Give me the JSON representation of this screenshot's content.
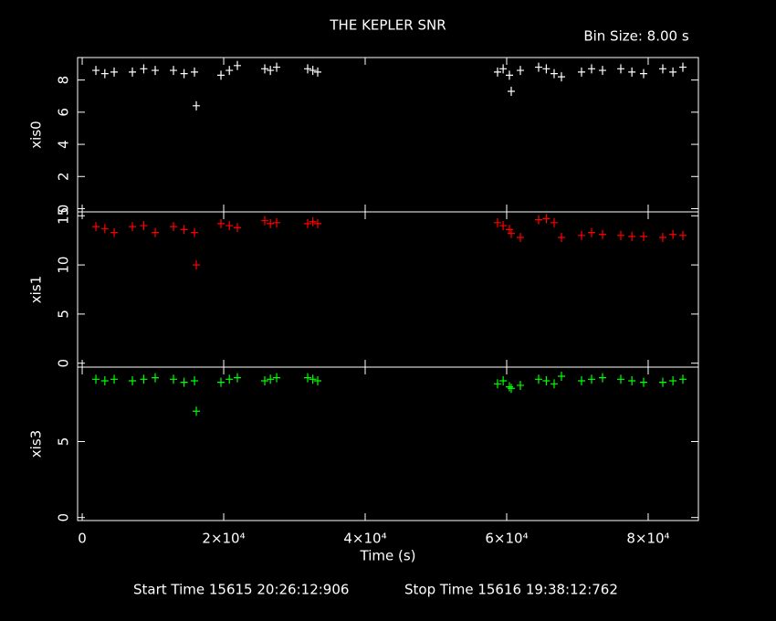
{
  "chart_data": [
    {
      "type": "scatter",
      "title": "THE KEPLER SNR",
      "subtitle": "Bin Size: 8.00 s",
      "ylabel": "xis0",
      "color": "#ffffff",
      "ylim": [
        -0.2,
        9.4
      ],
      "yticks": [
        0,
        2,
        4,
        6,
        8
      ],
      "x": [
        1935,
        3200,
        4516,
        7097,
        8700,
        10323,
        12903,
        14400,
        15871,
        16129,
        19613,
        20800,
        21935,
        25806,
        26600,
        27484,
        31871,
        32600,
        33290,
        58710,
        59500,
        60387,
        60645,
        61935,
        64516,
        65600,
        66710,
        67742,
        70581,
        72000,
        73548,
        76129,
        77700,
        79355,
        82065,
        83500,
        84903
      ],
      "y": [
        8.6,
        8.4,
        8.5,
        8.5,
        8.7,
        8.6,
        8.6,
        8.4,
        8.5,
        6.4,
        8.3,
        8.6,
        8.9,
        8.7,
        8.6,
        8.8,
        8.7,
        8.6,
        8.5,
        8.5,
        8.7,
        8.3,
        7.3,
        8.6,
        8.8,
        8.7,
        8.4,
        8.2,
        8.5,
        8.7,
        8.6,
        8.7,
        8.5,
        8.4,
        8.7,
        8.5,
        8.8
      ]
    },
    {
      "type": "scatter",
      "ylabel": "xis1",
      "color": "#ff0000",
      "ylim": [
        -0.4,
        15.4
      ],
      "yticks": [
        0,
        5,
        10,
        15
      ],
      "x": [
        1935,
        3200,
        4516,
        7097,
        8700,
        10323,
        12903,
        14400,
        15871,
        16129,
        19613,
        20800,
        21935,
        25806,
        26600,
        27484,
        31871,
        32600,
        33290,
        58710,
        59500,
        60387,
        60645,
        61935,
        64516,
        65600,
        66710,
        67742,
        70581,
        72000,
        73548,
        76129,
        77700,
        79355,
        82065,
        83500,
        84903
      ],
      "y": [
        13.9,
        13.7,
        13.3,
        13.9,
        14.0,
        13.3,
        13.9,
        13.6,
        13.3,
        10.0,
        14.2,
        14.0,
        13.8,
        14.5,
        14.2,
        14.3,
        14.2,
        14.4,
        14.2,
        14.3,
        14.0,
        13.6,
        13.2,
        12.8,
        14.6,
        14.7,
        14.3,
        12.8,
        13.0,
        13.3,
        13.1,
        13.0,
        12.9,
        12.9,
        12.8,
        13.1,
        13.0
      ]
    },
    {
      "type": "scatter",
      "ylabel": "xis3",
      "color": "#00ff00",
      "xlabel": "Time (s)",
      "start_time": "Start Time 15615 20:26:12:906",
      "stop_time": "Stop Time 15616 19:38:12:762",
      "xlim": [
        -650,
        87100
      ],
      "xticks": [
        0,
        {
          "value": 20000,
          "label": "2×10⁴"
        },
        {
          "value": 40000,
          "label": "4×10⁴"
        },
        {
          "value": 60000,
          "label": "6×10⁴"
        },
        {
          "value": 80000,
          "label": "8×10⁴"
        }
      ],
      "ylim": [
        -0.2,
        9.9
      ],
      "yticks": [
        0,
        5
      ],
      "x": [
        1935,
        3200,
        4516,
        7097,
        8700,
        10323,
        12903,
        14400,
        15871,
        16129,
        19613,
        20800,
        21935,
        25806,
        26600,
        27484,
        31871,
        32600,
        33290,
        58710,
        59500,
        60387,
        60645,
        61935,
        64516,
        65600,
        66710,
        67742,
        70581,
        72000,
        73548,
        76129,
        77700,
        79355,
        82065,
        83500,
        84903
      ],
      "y": [
        9.1,
        9.0,
        9.1,
        9.0,
        9.1,
        9.2,
        9.1,
        8.9,
        9.0,
        7.0,
        8.9,
        9.1,
        9.2,
        9.0,
        9.1,
        9.2,
        9.2,
        9.1,
        9.0,
        8.8,
        9.0,
        8.6,
        8.5,
        8.7,
        9.1,
        9.0,
        8.8,
        9.3,
        9.0,
        9.1,
        9.2,
        9.1,
        9.0,
        8.9,
        8.9,
        9.0,
        9.1
      ]
    }
  ]
}
